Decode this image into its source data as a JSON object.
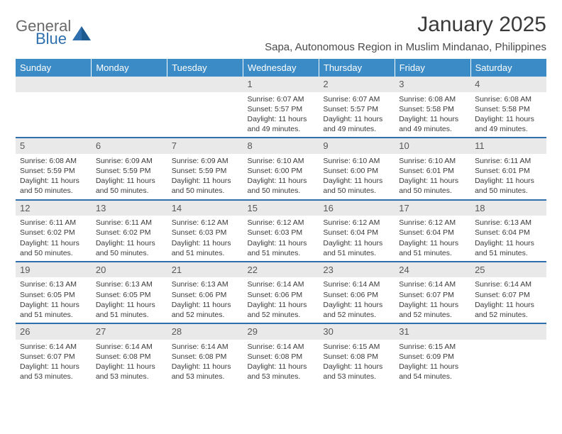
{
  "logo": {
    "text1": "General",
    "text2": "Blue"
  },
  "title": "January 2025",
  "location": "Sapa, Autonomous Region in Muslim Mindanao, Philippines",
  "header_bg": "#3b8bc7",
  "border_color": "#2f6fae",
  "daynum_bg": "#e9e9e9",
  "days": [
    "Sunday",
    "Monday",
    "Tuesday",
    "Wednesday",
    "Thursday",
    "Friday",
    "Saturday"
  ],
  "weeks": [
    [
      null,
      null,
      null,
      {
        "n": "1",
        "sr": "6:07 AM",
        "ss": "5:57 PM",
        "dl": "11 hours and 49 minutes."
      },
      {
        "n": "2",
        "sr": "6:07 AM",
        "ss": "5:57 PM",
        "dl": "11 hours and 49 minutes."
      },
      {
        "n": "3",
        "sr": "6:08 AM",
        "ss": "5:58 PM",
        "dl": "11 hours and 49 minutes."
      },
      {
        "n": "4",
        "sr": "6:08 AM",
        "ss": "5:58 PM",
        "dl": "11 hours and 49 minutes."
      }
    ],
    [
      {
        "n": "5",
        "sr": "6:08 AM",
        "ss": "5:59 PM",
        "dl": "11 hours and 50 minutes."
      },
      {
        "n": "6",
        "sr": "6:09 AM",
        "ss": "5:59 PM",
        "dl": "11 hours and 50 minutes."
      },
      {
        "n": "7",
        "sr": "6:09 AM",
        "ss": "5:59 PM",
        "dl": "11 hours and 50 minutes."
      },
      {
        "n": "8",
        "sr": "6:10 AM",
        "ss": "6:00 PM",
        "dl": "11 hours and 50 minutes."
      },
      {
        "n": "9",
        "sr": "6:10 AM",
        "ss": "6:00 PM",
        "dl": "11 hours and 50 minutes."
      },
      {
        "n": "10",
        "sr": "6:10 AM",
        "ss": "6:01 PM",
        "dl": "11 hours and 50 minutes."
      },
      {
        "n": "11",
        "sr": "6:11 AM",
        "ss": "6:01 PM",
        "dl": "11 hours and 50 minutes."
      }
    ],
    [
      {
        "n": "12",
        "sr": "6:11 AM",
        "ss": "6:02 PM",
        "dl": "11 hours and 50 minutes."
      },
      {
        "n": "13",
        "sr": "6:11 AM",
        "ss": "6:02 PM",
        "dl": "11 hours and 50 minutes."
      },
      {
        "n": "14",
        "sr": "6:12 AM",
        "ss": "6:03 PM",
        "dl": "11 hours and 51 minutes."
      },
      {
        "n": "15",
        "sr": "6:12 AM",
        "ss": "6:03 PM",
        "dl": "11 hours and 51 minutes."
      },
      {
        "n": "16",
        "sr": "6:12 AM",
        "ss": "6:04 PM",
        "dl": "11 hours and 51 minutes."
      },
      {
        "n": "17",
        "sr": "6:12 AM",
        "ss": "6:04 PM",
        "dl": "11 hours and 51 minutes."
      },
      {
        "n": "18",
        "sr": "6:13 AM",
        "ss": "6:04 PM",
        "dl": "11 hours and 51 minutes."
      }
    ],
    [
      {
        "n": "19",
        "sr": "6:13 AM",
        "ss": "6:05 PM",
        "dl": "11 hours and 51 minutes."
      },
      {
        "n": "20",
        "sr": "6:13 AM",
        "ss": "6:05 PM",
        "dl": "11 hours and 51 minutes."
      },
      {
        "n": "21",
        "sr": "6:13 AM",
        "ss": "6:06 PM",
        "dl": "11 hours and 52 minutes."
      },
      {
        "n": "22",
        "sr": "6:14 AM",
        "ss": "6:06 PM",
        "dl": "11 hours and 52 minutes."
      },
      {
        "n": "23",
        "sr": "6:14 AM",
        "ss": "6:06 PM",
        "dl": "11 hours and 52 minutes."
      },
      {
        "n": "24",
        "sr": "6:14 AM",
        "ss": "6:07 PM",
        "dl": "11 hours and 52 minutes."
      },
      {
        "n": "25",
        "sr": "6:14 AM",
        "ss": "6:07 PM",
        "dl": "11 hours and 52 minutes."
      }
    ],
    [
      {
        "n": "26",
        "sr": "6:14 AM",
        "ss": "6:07 PM",
        "dl": "11 hours and 53 minutes."
      },
      {
        "n": "27",
        "sr": "6:14 AM",
        "ss": "6:08 PM",
        "dl": "11 hours and 53 minutes."
      },
      {
        "n": "28",
        "sr": "6:14 AM",
        "ss": "6:08 PM",
        "dl": "11 hours and 53 minutes."
      },
      {
        "n": "29",
        "sr": "6:14 AM",
        "ss": "6:08 PM",
        "dl": "11 hours and 53 minutes."
      },
      {
        "n": "30",
        "sr": "6:15 AM",
        "ss": "6:08 PM",
        "dl": "11 hours and 53 minutes."
      },
      {
        "n": "31",
        "sr": "6:15 AM",
        "ss": "6:09 PM",
        "dl": "11 hours and 54 minutes."
      },
      null
    ]
  ],
  "labels": {
    "sunrise": "Sunrise:",
    "sunset": "Sunset:",
    "daylight": "Daylight:"
  }
}
